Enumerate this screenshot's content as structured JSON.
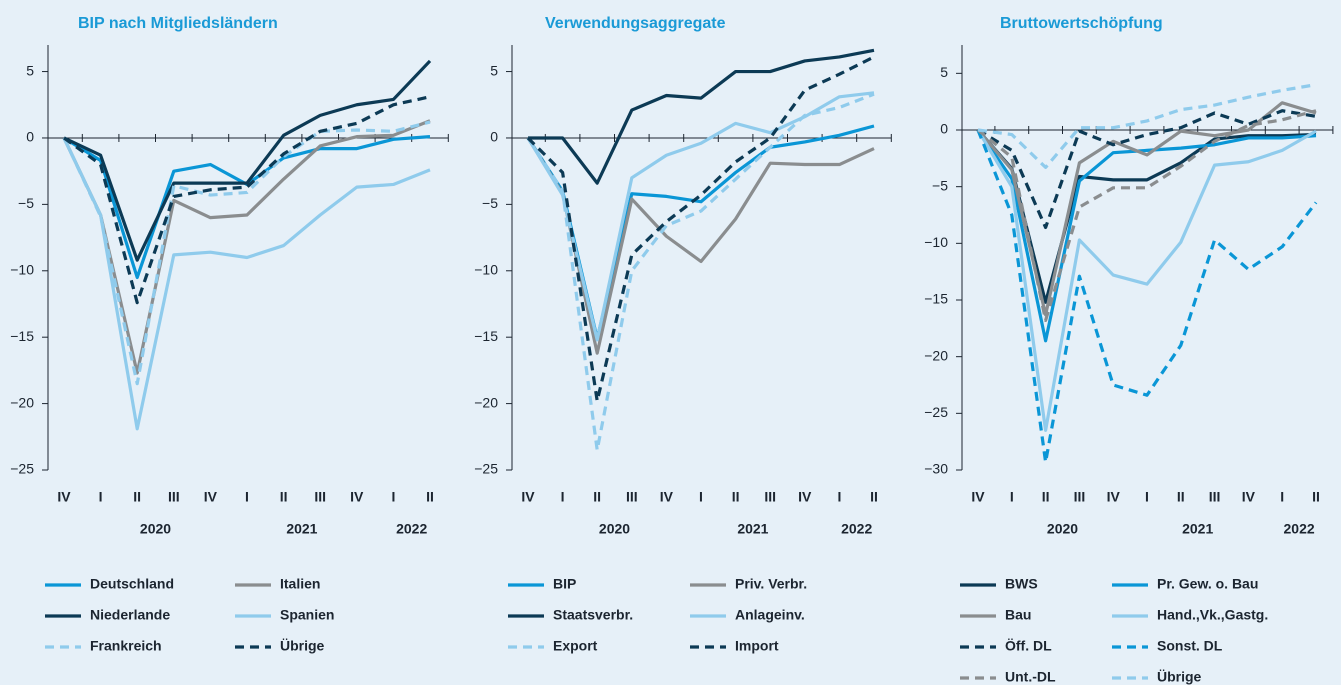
{
  "chart_data": [
    {
      "type": "line",
      "title": "BIP nach Mitgliedsländern",
      "categories": [
        "IV",
        "I",
        "II",
        "III",
        "IV",
        "I",
        "II",
        "III",
        "IV",
        "I",
        "II"
      ],
      "groups": [
        {
          "label": null,
          "span": 1
        },
        {
          "label": "2020",
          "span": 4
        },
        {
          "label": "2021",
          "span": 4
        },
        {
          "label": "2022",
          "span": 2
        }
      ],
      "ylim": [
        -25,
        7
      ],
      "yticks": [
        {
          "value": -25,
          "label": "−25"
        },
        {
          "value": -20,
          "label": "−20"
        },
        {
          "value": -15,
          "label": "−15"
        },
        {
          "value": -10,
          "label": "−10"
        },
        {
          "value": -5,
          "label": "−5"
        },
        0,
        5
      ],
      "series": [
        {
          "name": "Deutschland",
          "color": "#0a96d6",
          "dash": false,
          "values": [
            0,
            -1.7,
            -10.5,
            -2.5,
            -2,
            -3.5,
            -1.5,
            -0.8,
            -0.8,
            -0.1,
            0.1
          ]
        },
        {
          "name": "Italien",
          "color": "#8a8d8f",
          "dash": false,
          "values": [
            0,
            -5.8,
            -17.7,
            -4.7,
            -6,
            -5.8,
            -3.1,
            -0.6,
            0.1,
            0.2,
            1.3
          ]
        },
        {
          "name": "Niederlande",
          "color": "#0c3a55",
          "dash": false,
          "values": [
            0,
            -1.3,
            -9.2,
            -3.4,
            -3.4,
            -3.4,
            0.2,
            1.7,
            2.5,
            2.9,
            5.8
          ]
        },
        {
          "name": "Spanien",
          "color": "#8fcbec",
          "dash": false,
          "values": [
            0,
            -5.8,
            -21.9,
            -8.8,
            -8.6,
            -9,
            -8.1,
            -5.8,
            -3.7,
            -3.5,
            -2.4
          ]
        },
        {
          "name": "Frankreich",
          "color": "#8fcbec",
          "dash": true,
          "values": [
            0,
            -5.9,
            -18.5,
            -3.6,
            -4.3,
            -4.1,
            -1.4,
            0.5,
            0.6,
            0.5,
            1.2
          ]
        },
        {
          "name": "Übrige",
          "color": "#0c3a55",
          "dash": true,
          "values": [
            0,
            -2,
            -12.4,
            -4.4,
            -3.9,
            -3.7,
            -1.2,
            0.5,
            1.1,
            2.5,
            3.1
          ]
        }
      ]
    },
    {
      "type": "line",
      "title": "Verwendungsaggregate",
      "categories": [
        "IV",
        "I",
        "II",
        "III",
        "IV",
        "I",
        "II",
        "III",
        "IV",
        "I",
        "II"
      ],
      "groups": [
        {
          "label": null,
          "span": 1
        },
        {
          "label": "2020",
          "span": 4
        },
        {
          "label": "2021",
          "span": 4
        },
        {
          "label": "2022",
          "span": 2
        }
      ],
      "ylim": [
        -25,
        7
      ],
      "yticks": [
        {
          "value": -25,
          "label": "−25"
        },
        {
          "value": -20,
          "label": "−20"
        },
        {
          "value": -15,
          "label": "−15"
        },
        {
          "value": -10,
          "label": "−10"
        },
        {
          "value": -5,
          "label": "−5"
        },
        0,
        5
      ],
      "series": [
        {
          "name": "BIP",
          "color": "#0a96d6",
          "dash": false,
          "values": [
            0,
            -4,
            -15.1,
            -4.2,
            -4.4,
            -4.8,
            -2.6,
            -0.7,
            -0.3,
            0.2,
            0.9
          ]
        },
        {
          "name": "Priv. Verbr.",
          "color": "#8a8d8f",
          "dash": false,
          "values": [
            0,
            -4.2,
            -16.2,
            -4.6,
            -7.4,
            -9.3,
            -6.1,
            -1.9,
            -2,
            -2,
            -0.8
          ]
        },
        {
          "name": "Staatsverbr.",
          "color": "#0c3a55",
          "dash": false,
          "values": [
            0,
            0,
            -3.4,
            2.1,
            3.2,
            3,
            5,
            5,
            5.8,
            6.1,
            6.6
          ]
        },
        {
          "name": "Anlageinv.",
          "color": "#8fcbec",
          "dash": false,
          "values": [
            0,
            -4.3,
            -15.2,
            -3,
            -1.3,
            -0.4,
            1.1,
            0.4,
            1.6,
            3.1,
            3.4
          ]
        },
        {
          "name": "Export",
          "color": "#8fcbec",
          "dash": true,
          "values": [
            0,
            -4,
            -23.5,
            -10,
            -6.6,
            -5.5,
            -3.1,
            -0.7,
            1.7,
            2.3,
            3.3
          ]
        },
        {
          "name": "Import",
          "color": "#0c3a55",
          "dash": true,
          "values": [
            0,
            -2.6,
            -19.8,
            -8.8,
            -6.3,
            -4.3,
            -1.8,
            0,
            3.6,
            4.8,
            6.1
          ]
        }
      ]
    },
    {
      "type": "line",
      "title": "Bruttowertschöpfung",
      "categories": [
        "IV",
        "I",
        "II",
        "III",
        "IV",
        "I",
        "II",
        "III",
        "IV",
        "I",
        "II"
      ],
      "groups": [
        {
          "label": null,
          "span": 1
        },
        {
          "label": "2020",
          "span": 4
        },
        {
          "label": "2021",
          "span": 4
        },
        {
          "label": "2022",
          "span": 2
        }
      ],
      "ylim": [
        -30,
        7.5
      ],
      "yticks": [
        {
          "value": -30,
          "label": "−30"
        },
        {
          "value": -25,
          "label": "−25"
        },
        {
          "value": -20,
          "label": "−20"
        },
        {
          "value": -15,
          "label": "−15"
        },
        {
          "value": -10,
          "label": "−10"
        },
        {
          "value": -5,
          "label": "−5"
        },
        0,
        5
      ],
      "series": [
        {
          "name": "BWS",
          "color": "#0c3a55",
          "dash": false,
          "values": [
            0,
            -3.4,
            -15.2,
            -4.1,
            -4.4,
            -4.4,
            -2.9,
            -0.8,
            -0.5,
            -0.5,
            -0.4
          ]
        },
        {
          "name": "Pr. Gew. o. Bau",
          "color": "#0a96d6",
          "dash": false,
          "values": [
            0,
            -4.3,
            -18.6,
            -4.5,
            -2,
            -1.8,
            -1.6,
            -1.3,
            -0.7,
            -0.7,
            -0.5
          ]
        },
        {
          "name": "Bau",
          "color": "#8a8d8f",
          "dash": false,
          "values": [
            0,
            -3.5,
            -16.3,
            -2.9,
            -1,
            -2.2,
            -0.1,
            -0.5,
            0,
            2.4,
            1.5
          ]
        },
        {
          "name": "Hand.,Vk.,Gastg.",
          "color": "#8fcbec",
          "dash": false,
          "values": [
            0,
            -5,
            -26.5,
            -9.7,
            -12.8,
            -13.6,
            -9.9,
            -3.1,
            -2.8,
            -1.8,
            -0.1
          ]
        },
        {
          "name": "Öff. DL",
          "color": "#0c3a55",
          "dash": true,
          "values": [
            0,
            -1.8,
            -8.6,
            -0.1,
            -1.3,
            -0.4,
            0.2,
            1.5,
            0.5,
            1.7,
            1.2
          ]
        },
        {
          "name": "Sonst. DL",
          "color": "#0a96d6",
          "dash": true,
          "values": [
            0,
            -7.5,
            -29.3,
            -12.9,
            -22.5,
            -23.4,
            -19,
            -9.7,
            -12.3,
            -10.3,
            -6.4
          ]
        },
        {
          "name": "Unt.-DL",
          "color": "#8a8d8f",
          "dash": true,
          "values": [
            0,
            -2.4,
            -16.8,
            -6.8,
            -5.1,
            -5.1,
            -3.2,
            -1,
            0.4,
            0.9,
            1.7
          ]
        },
        {
          "name": "Übrige",
          "color": "#8fcbec",
          "dash": true,
          "values": [
            0,
            -0.4,
            -3.3,
            0.2,
            0.2,
            0.8,
            1.8,
            2.2,
            2.9,
            3.5,
            4
          ]
        }
      ]
    }
  ]
}
